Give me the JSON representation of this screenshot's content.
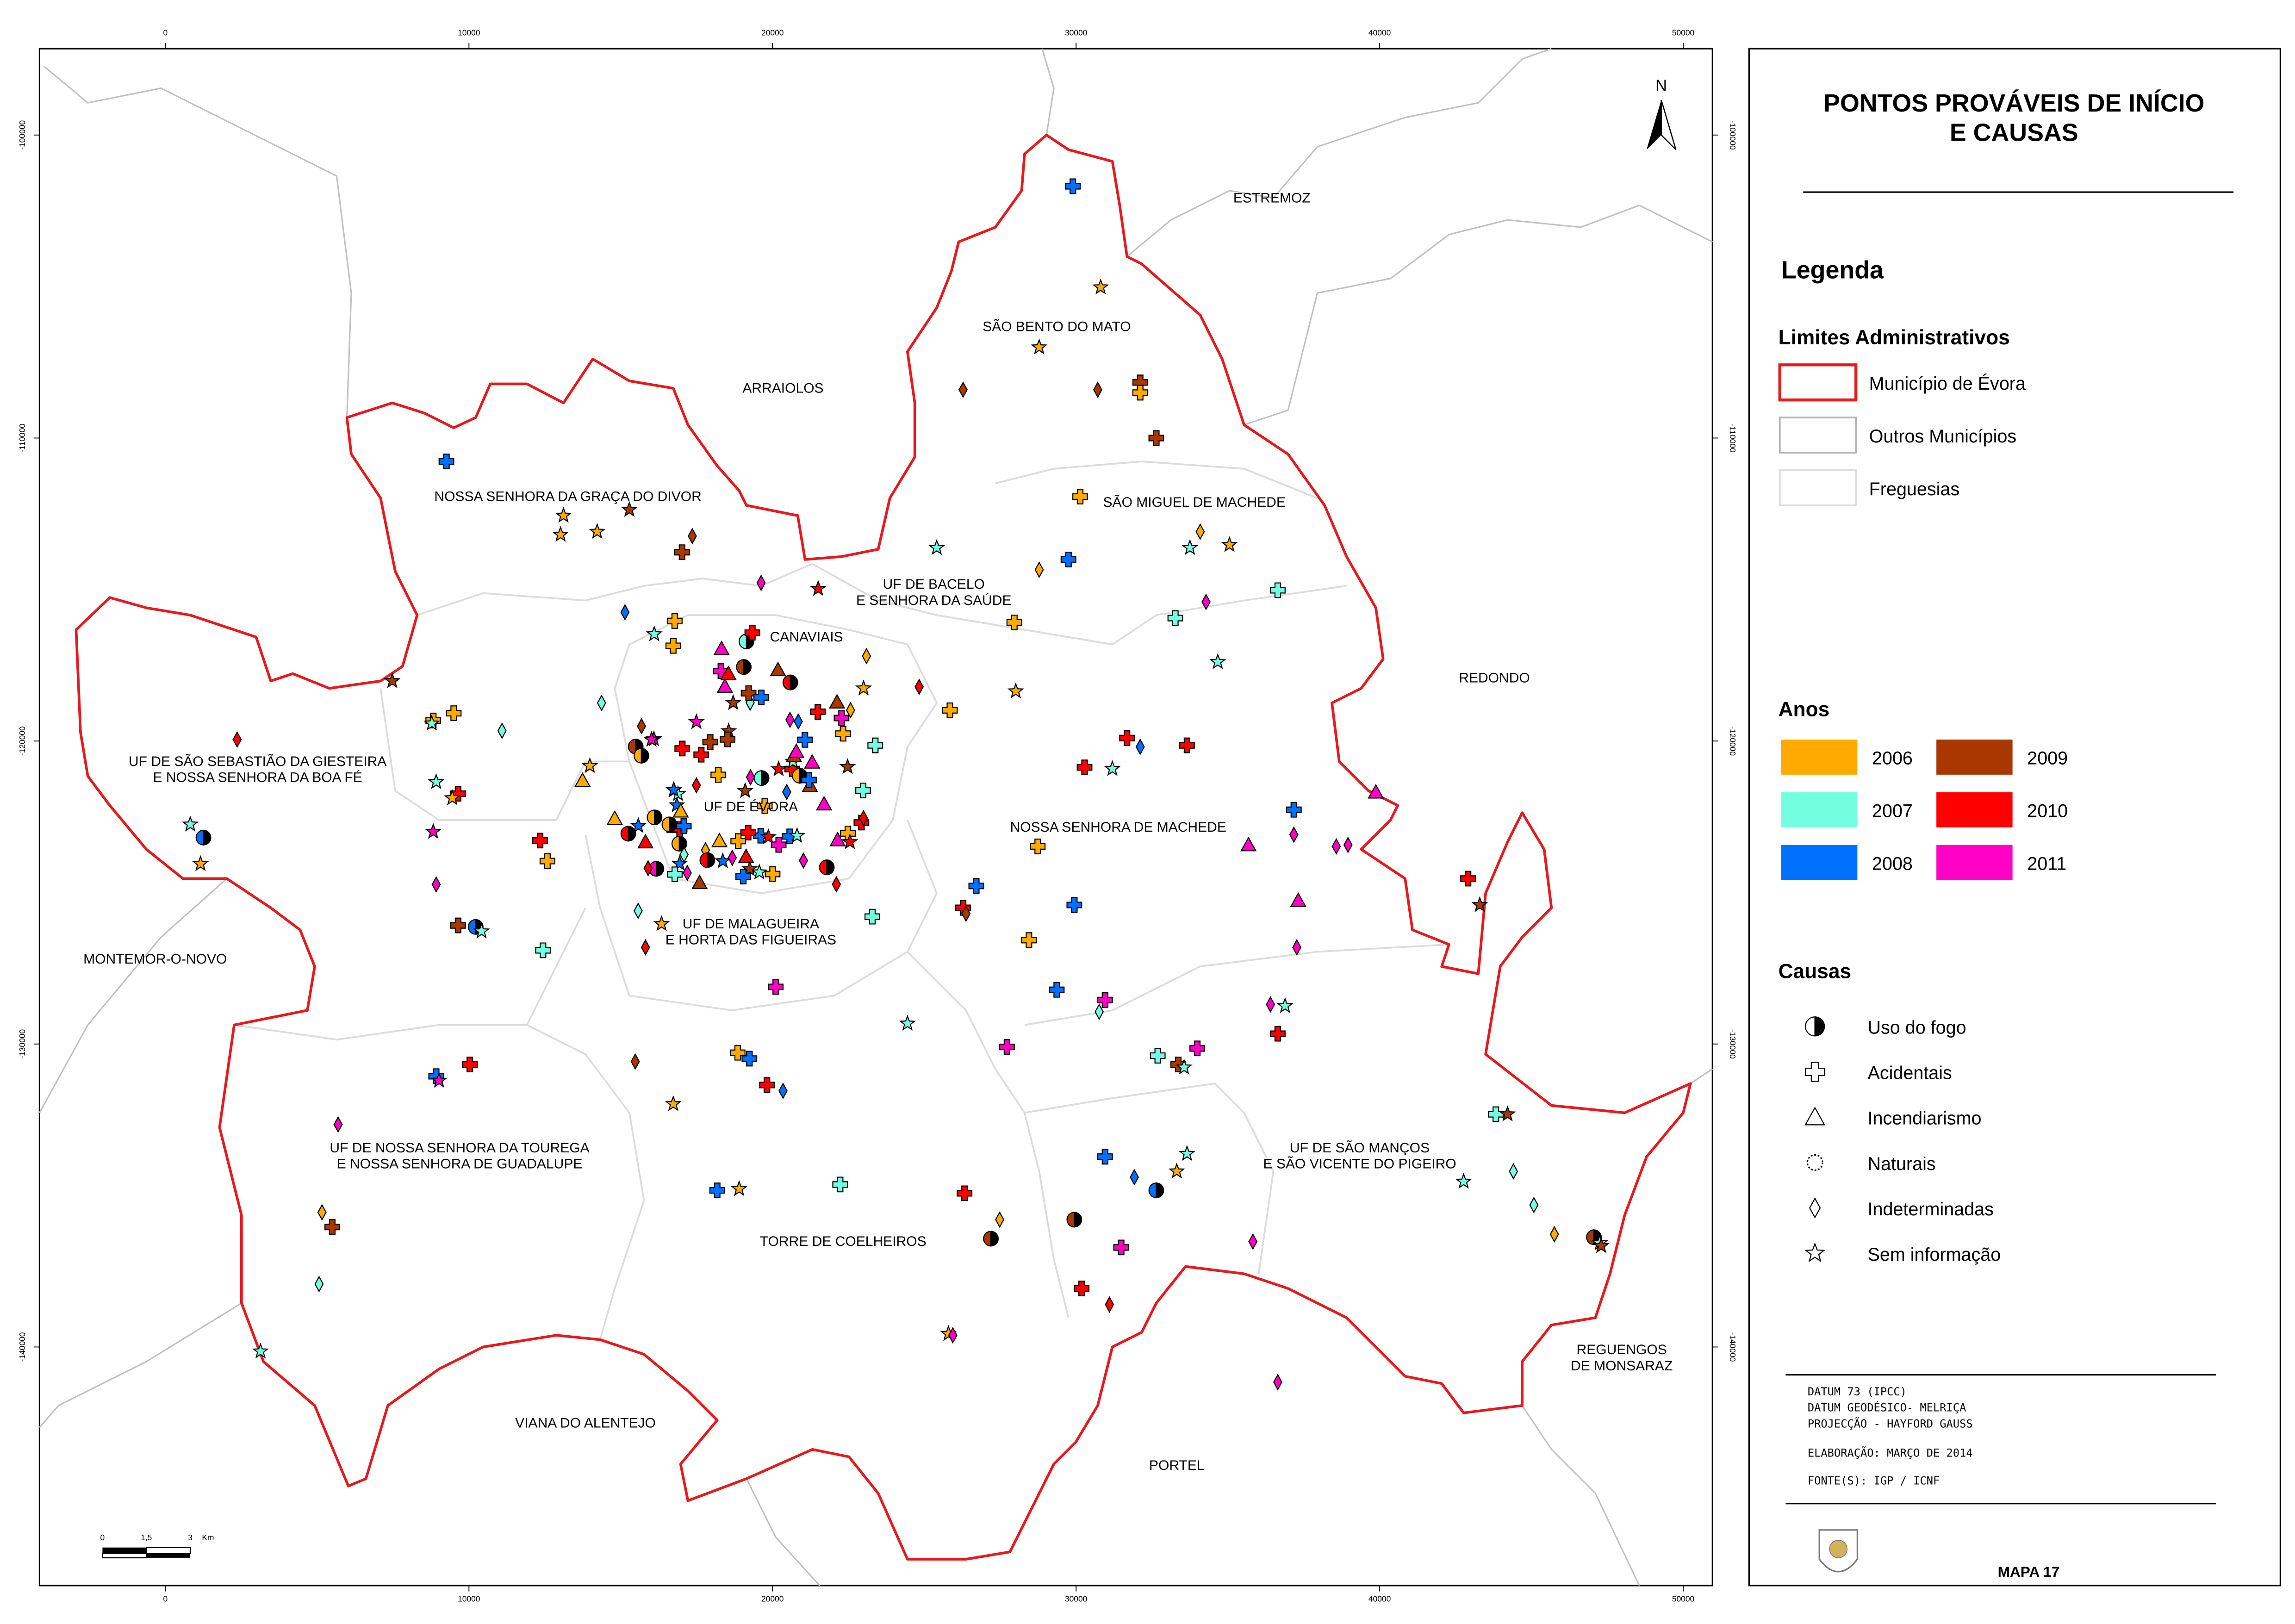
{
  "map": {
    "north": "N",
    "axis": {
      "x": [
        "0",
        "10000",
        "20000",
        "30000",
        "40000",
        "50000"
      ],
      "y": [
        "-100000",
        "-110000",
        "-120000",
        "-130000",
        "-140000"
      ]
    },
    "scalebar": [
      "0",
      "1,5",
      "3",
      "Km"
    ],
    "places": [
      [
        "ESTREMOZ"
      ],
      [
        "ARRAIOLOS"
      ],
      [
        "SÃO BENTO DO MATO"
      ],
      [
        "NOSSA SENHORA DA GRAÇA DO DIVOR"
      ],
      [
        "SÃO MIGUEL DE MACHEDE"
      ],
      [
        "UF DE BACELO",
        "E SENHORA DA SAÚDE"
      ],
      [
        "CANAVIAIS"
      ],
      [
        "REDONDO"
      ],
      [
        "UF DE SÃO SEBASTIÃO DA GIESTEIRA",
        "E NOSSA SENHORA DA BOA FÉ"
      ],
      [
        "UF DE ÉVORA"
      ],
      [
        "NOSSA SENHORA DE MACHEDE"
      ],
      [
        "MONTEMOR-O-NOVO"
      ],
      [
        "UF DE MALAGUEIRA",
        "E HORTA DAS FIGUEIRAS"
      ],
      [
        "UF DE NOSSA SENHORA DA TOUREGA",
        "E NOSSA SENHORA DE GUADALUPE"
      ],
      [
        "UF DE SÃO MANÇOS",
        "E SÃO VICENTE DO PIGEIRO"
      ],
      [
        "TORRE DE COELHEIROS"
      ],
      [
        "REGUENGOS",
        "DE MONSARAZ"
      ],
      [
        "VIANA DO ALENTEJO"
      ],
      [
        "PORTEL"
      ]
    ]
  },
  "panel": {
    "title": [
      "PONTOS PROVÁVEIS DE INÍCIO",
      "E CAUSAS"
    ],
    "legend_heading": "Legenda",
    "admin": {
      "heading": "Limites Administrativos",
      "items": [
        {
          "label": "Município de Évora",
          "color": "#e8191c"
        },
        {
          "label": "Outros Municípios",
          "color": "#b4b4b4"
        },
        {
          "label": "Freguesias",
          "color": "#dcdcdc"
        }
      ]
    },
    "years": {
      "heading": "Anos",
      "items": [
        {
          "label": "2006",
          "color": "#ffaa00"
        },
        {
          "label": "2007",
          "color": "#73ffdf"
        },
        {
          "label": "2008",
          "color": "#0070ff"
        },
        {
          "label": "2009",
          "color": "#a83800"
        },
        {
          "label": "2010",
          "color": "#ff0000"
        },
        {
          "label": "2011",
          "color": "#ff00c5"
        }
      ]
    },
    "causes": {
      "heading": "Causas",
      "items": [
        "Uso do fogo",
        "Acidentais",
        "Incendiarismo",
        "Naturais",
        "Indeterminadas",
        "Sem informação"
      ]
    },
    "info": [
      "DATUM 73 (IPCC)",
      "DATUM GEODÉSICO- MELRIÇA",
      "PROJECÇÃO - HAYFORD GAUSS",
      "ELABORAÇÃO: MARÇO DE 2014",
      "FONTE(S): IGP / ICNF"
    ],
    "map_id": "MAPA 17"
  }
}
